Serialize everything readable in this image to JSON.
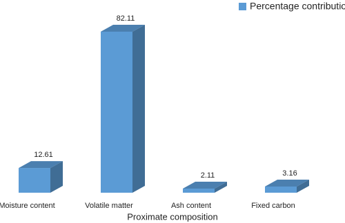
{
  "chart_data": {
    "type": "bar",
    "categories": [
      "Moisture content",
      "Volatile matter",
      "Ash content",
      "Fixed carbon"
    ],
    "series": [
      {
        "name": "Percentage contribution",
        "color": "#5b9bd5",
        "values": [
          12.61,
          82.11,
          2.11,
          3.16
        ]
      }
    ],
    "x_label": "Proximate composition",
    "legend": "top-right"
  }
}
